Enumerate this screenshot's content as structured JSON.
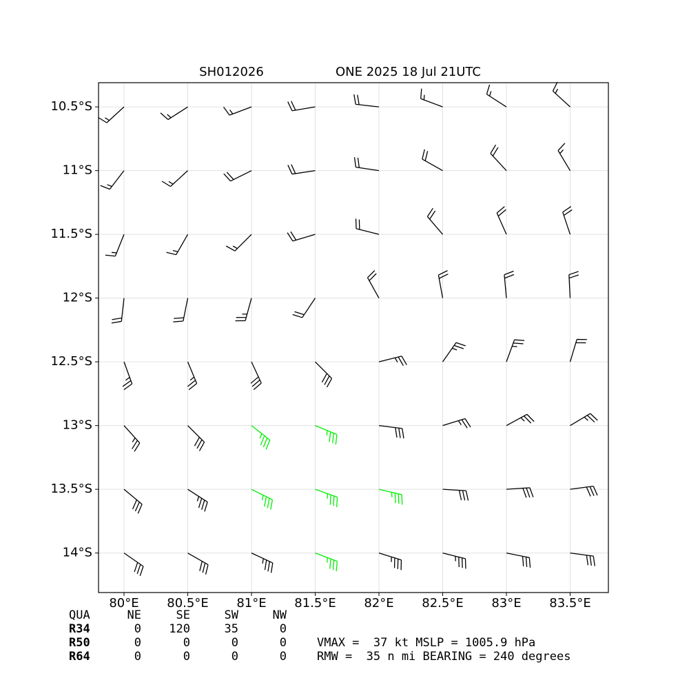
{
  "chart_data": {
    "type": "wind-barb",
    "title": "SH012026",
    "subtitle": "ONE 2025 18 Jul 21UTC",
    "threshold": 34,
    "color": "#000000",
    "highlight_color": "#00ee00",
    "grid": true,
    "xlim": [
      79.8,
      83.8
    ],
    "ylim": [
      -14.31,
      -10.31
    ],
    "xticks": [
      {
        "value": 80,
        "label": "80°E"
      },
      {
        "value": 80.5,
        "label": "80.5°E"
      },
      {
        "value": 81,
        "label": "81°E"
      },
      {
        "value": 81.5,
        "label": "81.5°E"
      },
      {
        "value": 82,
        "label": "82°E"
      },
      {
        "value": 82.5,
        "label": "82.5°E"
      },
      {
        "value": 83,
        "label": "83°E"
      },
      {
        "value": 83.5,
        "label": "83.5°E"
      }
    ],
    "yticks": [
      {
        "value": -10.5,
        "label": "10.5°S"
      },
      {
        "value": -11,
        "label": "11°S"
      },
      {
        "value": -11.5,
        "label": "11.5°S"
      },
      {
        "value": -12,
        "label": "12°S"
      },
      {
        "value": -12.5,
        "label": "12.5°S"
      },
      {
        "value": -13,
        "label": "13°S"
      },
      {
        "value": -13.5,
        "label": "13.5°S"
      },
      {
        "value": -14,
        "label": "14°S"
      }
    ],
    "x": [
      80,
      80.5,
      81,
      81.5,
      82,
      82.5,
      83,
      83.5
    ],
    "y": [
      -10.5,
      -11,
      -11.5,
      -12,
      -12.5,
      -13,
      -13.5,
      -14
    ],
    "u": [
      [
        12,
        14,
        16,
        18,
        18,
        16,
        14,
        12
      ],
      [
        10,
        12,
        16,
        20,
        20,
        16,
        12,
        9
      ],
      [
        6,
        8,
        12,
        20,
        20,
        12,
        8,
        6
      ],
      [
        2,
        4,
        6,
        12,
        10,
        4,
        2,
        1
      ],
      [
        -8,
        -10,
        -12,
        -20,
        -24,
        -14,
        -8,
        -6
      ],
      [
        -18,
        -22,
        -28,
        -34,
        -32,
        -26,
        -22,
        -20
      ],
      [
        -24,
        -28,
        -32,
        -34,
        -34,
        -32,
        -30,
        -30
      ],
      [
        -26,
        -28,
        -30,
        -32,
        -32,
        -32,
        -30,
        -30
      ]
    ],
    "v": [
      [
        11,
        9,
        6,
        3,
        -2,
        -6,
        -9,
        -11
      ],
      [
        13,
        11,
        8,
        3,
        -3,
        -9,
        -13,
        -15
      ],
      [
        15,
        14,
        12,
        6,
        -5,
        -14,
        -18,
        -18
      ],
      [
        18,
        20,
        22,
        18,
        -18,
        -22,
        -22,
        -20
      ],
      [
        22,
        24,
        26,
        20,
        -6,
        -20,
        -22,
        -20
      ],
      [
        20,
        22,
        22,
        14,
        4,
        -8,
        -12,
        -12
      ],
      [
        20,
        18,
        16,
        12,
        8,
        2,
        -2,
        -4
      ],
      [
        18,
        16,
        14,
        12,
        10,
        8,
        6,
        4
      ]
    ]
  },
  "table": {
    "header": [
      "QUA",
      "NE",
      "SE",
      "SW",
      "NW"
    ],
    "rows": [
      [
        "R34",
        0,
        120,
        35,
        0
      ],
      [
        "R50",
        0,
        0,
        0,
        0
      ],
      [
        "R64",
        0,
        0,
        0,
        0
      ]
    ]
  },
  "info": [
    "VMAX =  37 kt MSLP = 1005.9 hPa",
    "RMW =  35 n mi BEARING = 240 degrees"
  ]
}
